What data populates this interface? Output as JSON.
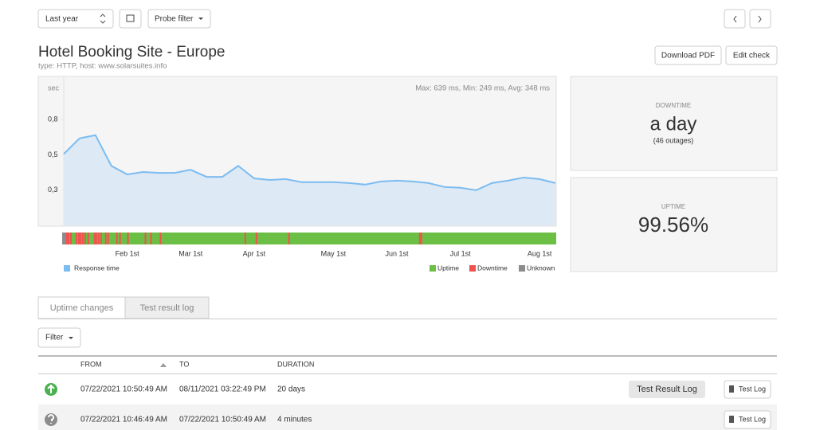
{
  "toolbar": {
    "period": "Last year",
    "probe_filter": "Probe filter"
  },
  "header": {
    "title": "Hotel Booking Site - Europe",
    "subtitle": "type: HTTP, host: www.solarsuites.info"
  },
  "actions": [
    "Download PDF",
    "Edit check"
  ],
  "chart_data": {
    "type": "line",
    "y_label": "sec",
    "stats": "Max: 639 ms, Min: 249 ms, Avg: 348 ms",
    "categories": [
      null,
      null,
      null,
      null,
      "Feb 1st",
      null,
      null,
      null,
      "Mar 1st",
      null,
      null,
      null,
      "Apr 1st",
      null,
      null,
      null,
      null,
      "May 1st",
      null,
      null,
      null,
      "Jun 1st",
      null,
      null,
      null,
      "Jul 1st",
      null,
      null,
      null,
      null,
      "Aug 1st",
      null
    ],
    "series": [
      {
        "name": "Response time",
        "color": "#7cbcf0",
        "fill": "#dde9f5",
        "values": [
          0.506,
          0.617,
          0.639,
          0.422,
          0.361,
          0.378,
          0.372,
          0.372,
          0.394,
          0.344,
          0.344,
          0.422,
          0.333,
          0.322,
          0.328,
          0.306,
          0.306,
          0.306,
          0.3,
          0.289,
          0.311,
          0.317,
          0.311,
          0.3,
          0.272,
          0.267,
          0.249,
          0.3,
          0.317,
          0.339,
          0.328,
          0.3
        ]
      }
    ],
    "ylim": [
      0,
      1.05
    ],
    "yticks": [
      {
        "value": 0.25,
        "label": "0,3"
      },
      {
        "value": 0.5,
        "label": "0,5"
      },
      {
        "value": 0.75,
        "label": "0,8"
      }
    ],
    "status_legend": [
      {
        "name": "Uptime",
        "color": "#6cbf45"
      },
      {
        "name": "Downtime",
        "color": "#f0524f"
      },
      {
        "name": "Unknown",
        "color": "#8c8c8c"
      }
    ],
    "unknown_x": [
      0,
      0.15
    ],
    "downtime_x": [
      0.2,
      0.3,
      0.45,
      0.8,
      0.95,
      1.05,
      1.2,
      1.35,
      1.55,
      1.95,
      2.05,
      2.2,
      2.35,
      2.65,
      2.8,
      3.35,
      3.55,
      4.05,
      5.15,
      5.5,
      6.1,
      11.45,
      12.15,
      14.2,
      22.45,
      22.55
    ]
  },
  "cards": [
    {
      "label": "DOWNTIME",
      "value": "a day",
      "note": "(46 outages)"
    },
    {
      "label": "UPTIME",
      "value": "99.56%"
    }
  ],
  "tabs": [
    "Uptime changes",
    "Test result log"
  ],
  "filter": "Filter",
  "table": {
    "headers": [
      "FROM",
      "TO",
      "DURATION"
    ],
    "rows": [
      [
        "07/22/2021 10:50:49 AM",
        "08/11/2021 03:22:49 PM",
        "20 days"
      ],
      [
        "07/22/2021 10:46:49 AM",
        "07/22/2021 10:50:49 AM",
        "4 minutes"
      ]
    ],
    "action": "Test Log",
    "tooltip": "Test Result Log"
  }
}
